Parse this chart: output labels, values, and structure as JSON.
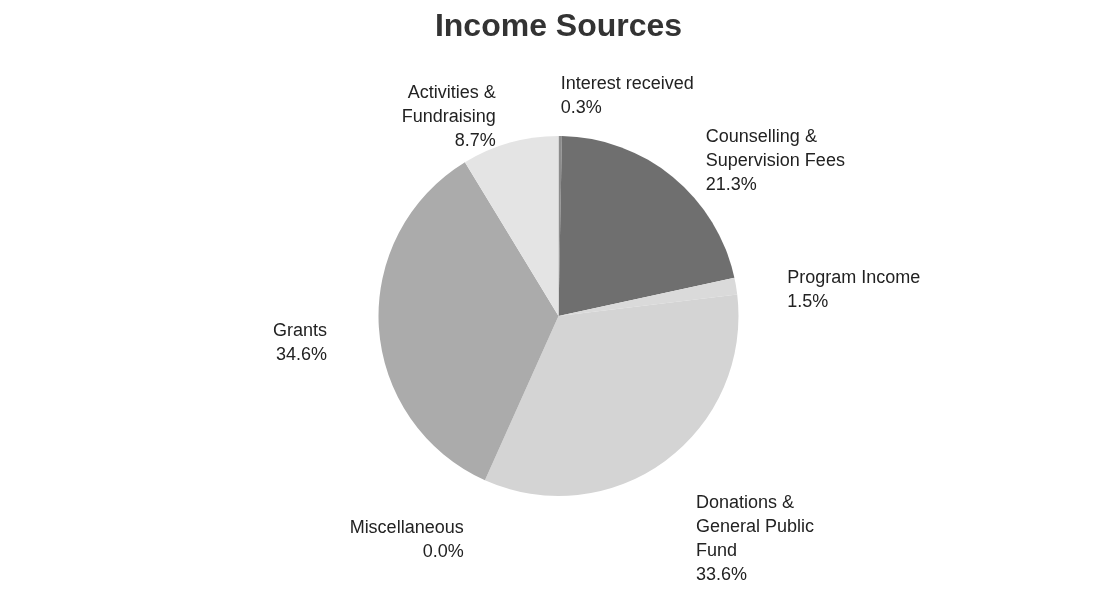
{
  "chart_data": {
    "type": "pie",
    "title": "Income Sources",
    "categories": [
      "Interest received",
      "Counselling & Supervision Fees",
      "Program Income",
      "Donations & General Public Fund",
      "Miscellaneous",
      "Grants",
      "Activities & Fundraising"
    ],
    "values": [
      0.3,
      21.3,
      1.5,
      33.6,
      0.0,
      34.6,
      8.7
    ],
    "value_labels": [
      "0.3%",
      "21.3%",
      "1.5%",
      "33.6%",
      "0.0%",
      "34.6%",
      "8.7%"
    ],
    "colors": [
      "#8c8c8c",
      "#6f6f6f",
      "#dadada",
      "#d4d4d4",
      "#c8c8c8",
      "#ababab",
      "#e4e4e4"
    ],
    "legend": false
  }
}
